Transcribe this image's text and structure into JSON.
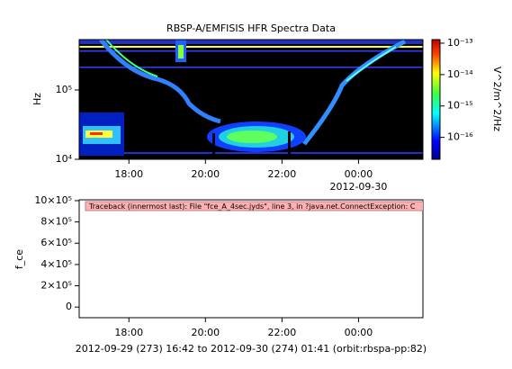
{
  "chart_data": [
    {
      "type": "spectrogram",
      "title": "RBSP-A/EMFISIS  HFR Spectra Data",
      "ylabel": "Hz",
      "ylog": true,
      "xlim": [
        16.7,
        25.683
      ],
      "xticks": [
        {
          "value": 18,
          "label": "18:00"
        },
        {
          "value": 20,
          "label": "20:00"
        },
        {
          "value": 22,
          "label": "22:00"
        },
        {
          "value": 24,
          "label": "00:00"
        }
      ],
      "x_date_label": "2012-09-30",
      "ylim": [
        10000,
        533000
      ],
      "yticks": [
        {
          "value": 10000,
          "label": "10⁴"
        },
        {
          "value": 100000,
          "label": "10⁵"
        }
      ],
      "colorbar": {
        "label": "V^2/m^2/Hz",
        "log": true,
        "zlim": [
          2e-17,
          1.3e-13
        ],
        "ticks": [
          {
            "value": 1e-13,
            "label": "10⁻¹³"
          },
          {
            "value": 1e-14,
            "label": "10⁻¹⁴"
          },
          {
            "value": 1e-15,
            "label": "10⁻¹⁵"
          },
          {
            "value": 1e-16,
            "label": "10⁻¹⁶"
          }
        ]
      }
    },
    {
      "type": "line",
      "ylabel": "f_ce",
      "xlim": [
        16.7,
        25.683
      ],
      "xticks": [
        {
          "value": 18,
          "label": "18:00"
        },
        {
          "value": 20,
          "label": "20:00"
        },
        {
          "value": 22,
          "label": "22:00"
        },
        {
          "value": 24,
          "label": "00:00"
        }
      ],
      "ylim": [
        -100000,
        1008000
      ],
      "yticks": [
        {
          "value": 0,
          "label": "0"
        },
        {
          "value": 200000,
          "label": "2×10⁵"
        },
        {
          "value": 400000,
          "label": "4×10⁵"
        },
        {
          "value": 600000,
          "label": "6×10⁵"
        },
        {
          "value": 800000,
          "label": "8×10⁵"
        },
        {
          "value": 1000000,
          "label": "10×10⁵"
        }
      ],
      "series": [],
      "error_message": "Traceback (innermost last):  File \"fce_A_4sec.jyds\", line 3, in ?java.net.ConnectException: C",
      "xlabel": "2012-09-29 (273) 16:42 to 2012-09-30 (274) 01:41 (orbit:rbspa-pp:82)"
    }
  ]
}
